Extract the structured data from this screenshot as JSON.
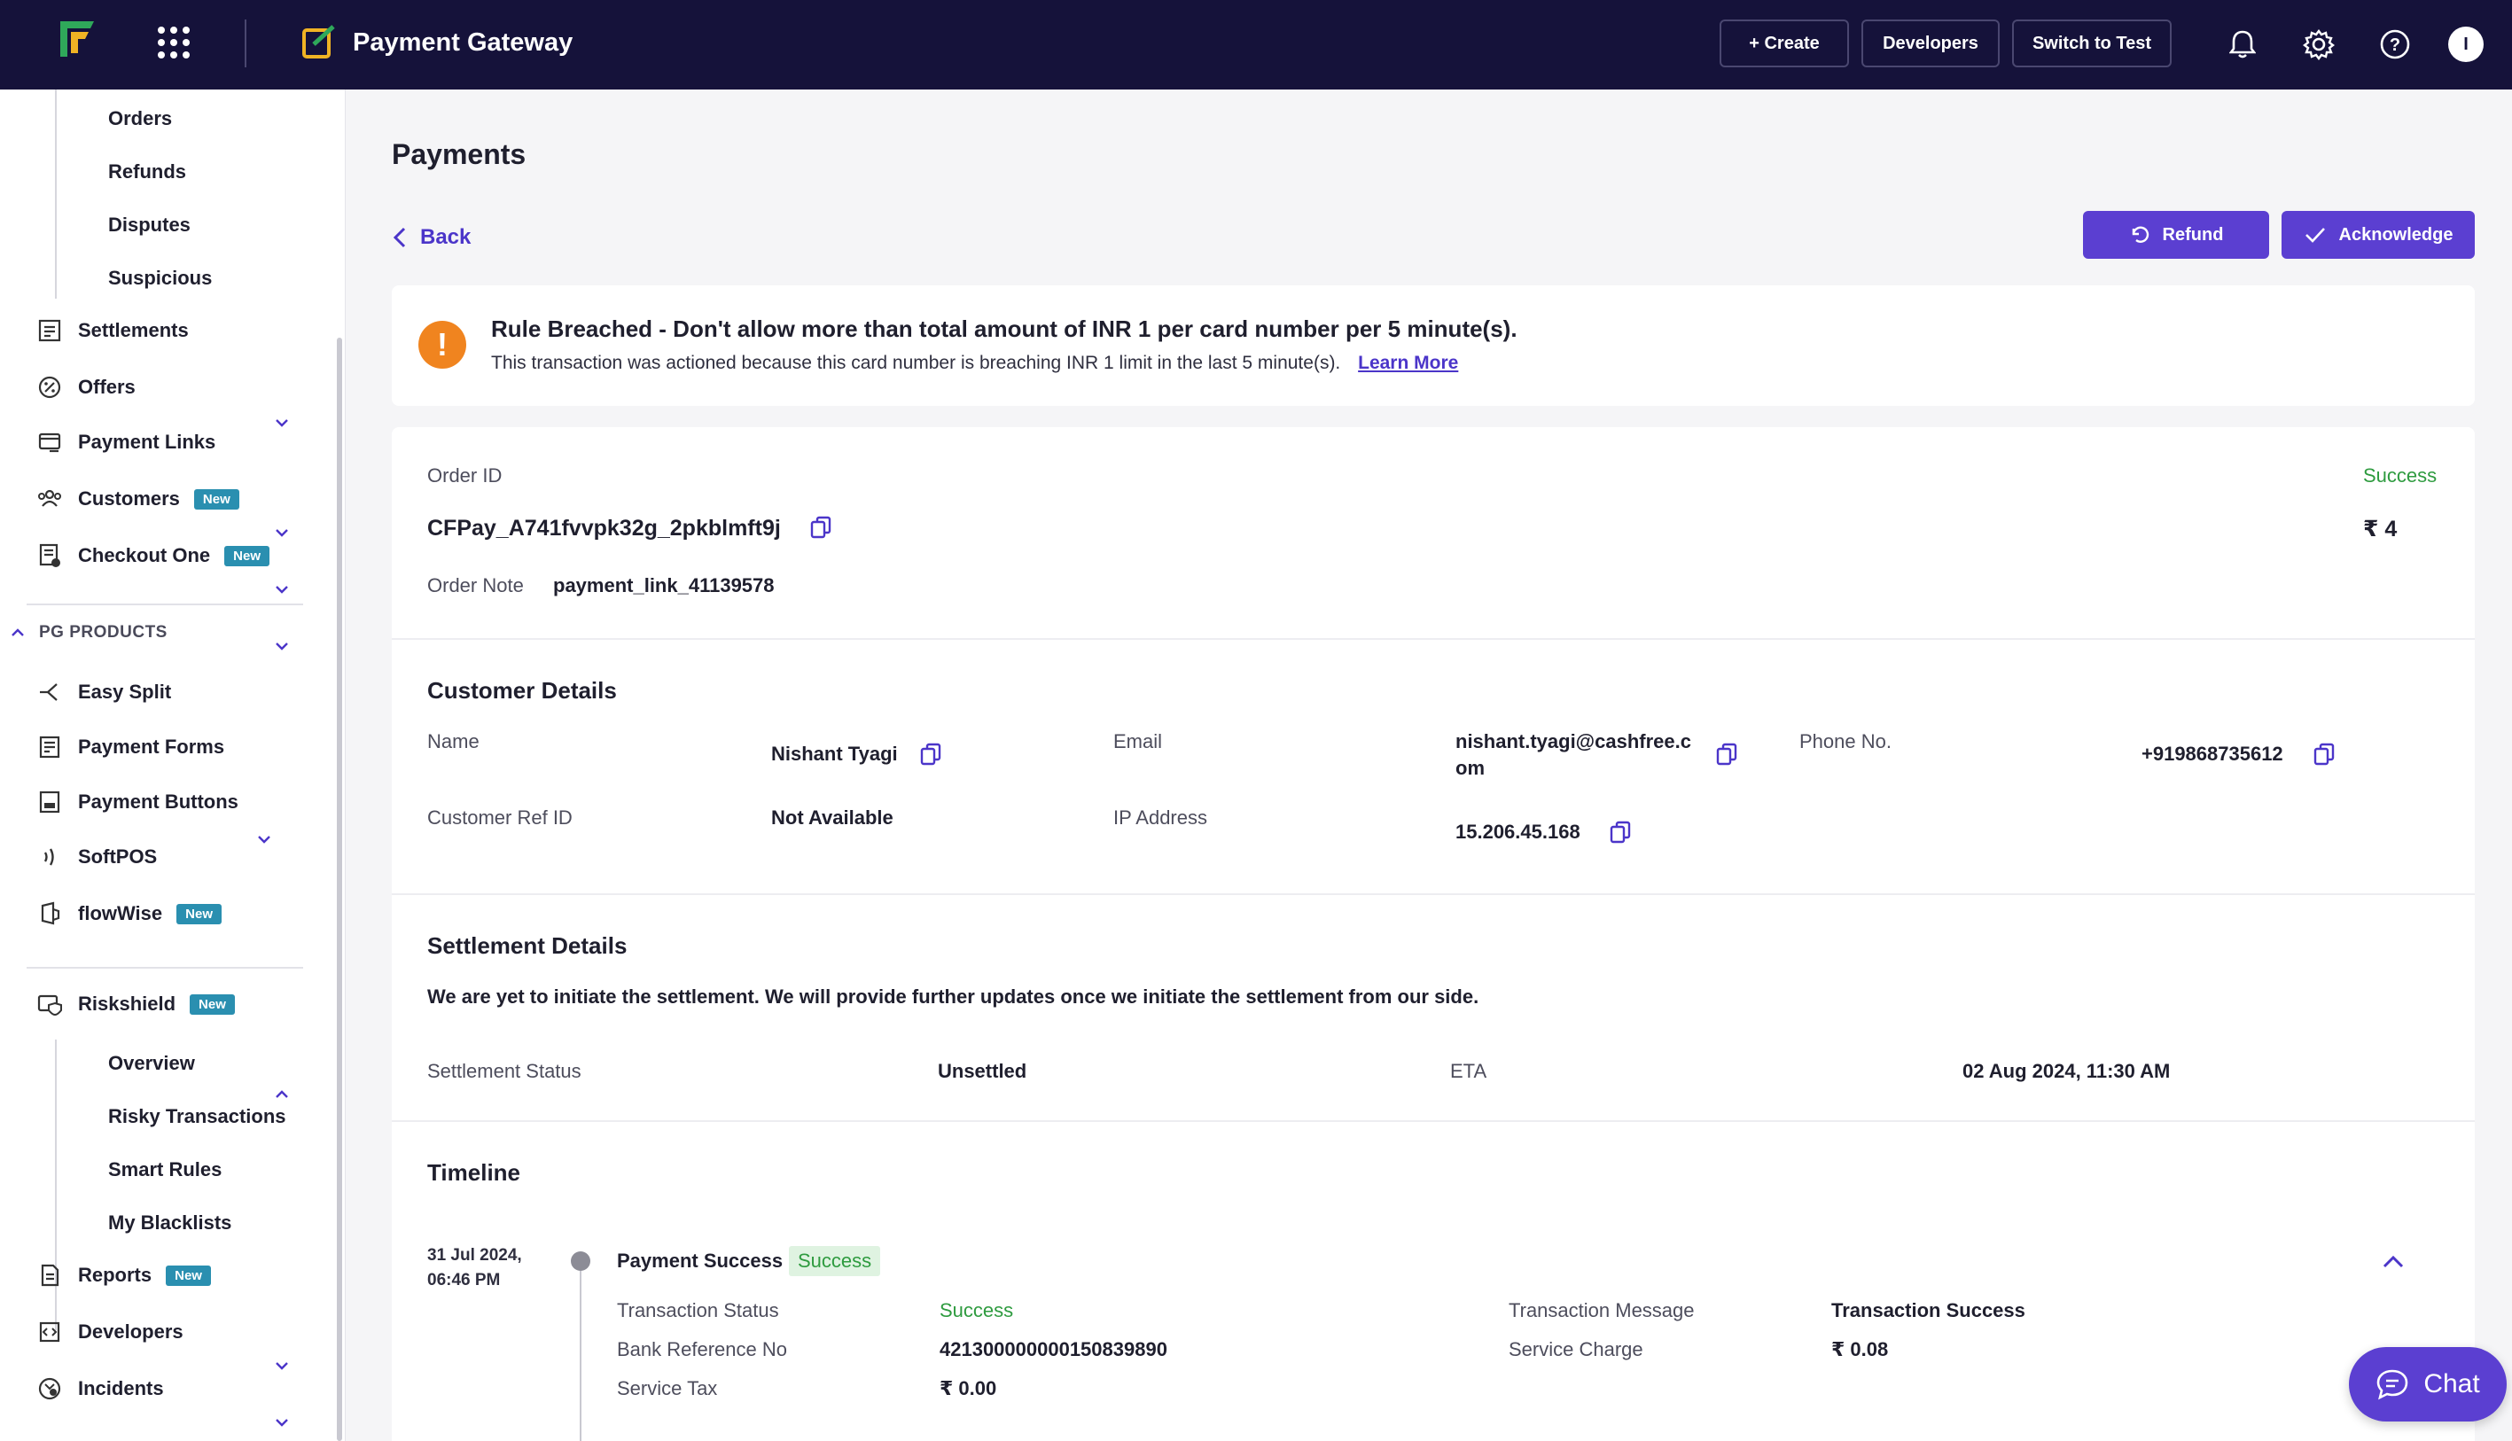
{
  "topbar": {
    "product_title": "Payment Gateway",
    "create_label": "+ Create",
    "developers_label": "Developers",
    "switch_label": "Switch to Test",
    "avatar_initial": "I",
    "bg_color": "#15123a"
  },
  "sidebar": {
    "sub_top": [
      "Orders",
      "Refunds",
      "Disputes",
      "Suspicious"
    ],
    "settlements": "Settlements",
    "offers": "Offers",
    "payment_links": "Payment Links",
    "customers": "Customers",
    "checkout_one": "Checkout One",
    "new_badge": "New",
    "pg_products": "PG PRODUCTS",
    "easy_split": "Easy Split",
    "payment_forms": "Payment Forms",
    "payment_buttons": "Payment Buttons",
    "softpos": "SoftPOS",
    "flowwise": "flowWise",
    "riskshield": "Riskshield",
    "riskshield_sub": [
      "Overview",
      "Risky Transactions",
      "Smart Rules",
      "My Blacklists"
    ],
    "reports": "Reports",
    "developers": "Developers",
    "incidents": "Incidents"
  },
  "main": {
    "page_title": "Payments",
    "back_label": "Back",
    "refund_label": "Refund",
    "acknowledge_label": "Acknowledge",
    "accent_color": "#5b3fd1"
  },
  "alert": {
    "title": "Rule Breached - Don't allow more than total amount of INR 1 per card number per 5 minute(s).",
    "description": "This transaction was actioned because this card number is breaching INR 1 limit in the last 5 minute(s).",
    "link": "Learn More"
  },
  "order": {
    "id_label": "Order ID",
    "id_value": "CFPay_A741fvvpk32g_2pkblmft9j",
    "status": "Success",
    "amount": "₹ 4",
    "note_label": "Order Note",
    "note_value": "payment_link_41139578"
  },
  "customer": {
    "heading": "Customer Details",
    "name_label": "Name",
    "name_value": "Nishant Tyagi",
    "email_label": "Email",
    "email_line1": "nishant.tyagi@cashfree.c",
    "email_line2": "om",
    "phone_label": "Phone No.",
    "phone_value": "+919868735612",
    "ref_label": "Customer Ref ID",
    "ref_value": "Not Available",
    "ip_label": "IP Address",
    "ip_value": "15.206.45.168"
  },
  "settlement": {
    "heading": "Settlement Details",
    "message": "We are yet to initiate the settlement. We will provide further updates once we initiate the settlement from our side.",
    "status_label": "Settlement Status",
    "status_value": "Unsettled",
    "eta_label": "ETA",
    "eta_value": "02 Aug 2024, 11:30 AM"
  },
  "timeline": {
    "heading": "Timeline",
    "date_line1": "31 Jul 2024,",
    "date_line2": "06:46 PM",
    "event": "Payment Success",
    "event_badge": "Success",
    "txn_status_label": "Transaction Status",
    "txn_status_value": "Success",
    "bank_ref_label": "Bank Reference No",
    "bank_ref_value": "421300000000150839890",
    "service_tax_label": "Service Tax",
    "service_tax_value": "₹ 0.00",
    "txn_msg_label": "Transaction Message",
    "txn_msg_value": "Transaction Success",
    "service_charge_label": "Service Charge",
    "service_charge_value": "₹ 0.08"
  },
  "chat": {
    "label": "Chat"
  }
}
